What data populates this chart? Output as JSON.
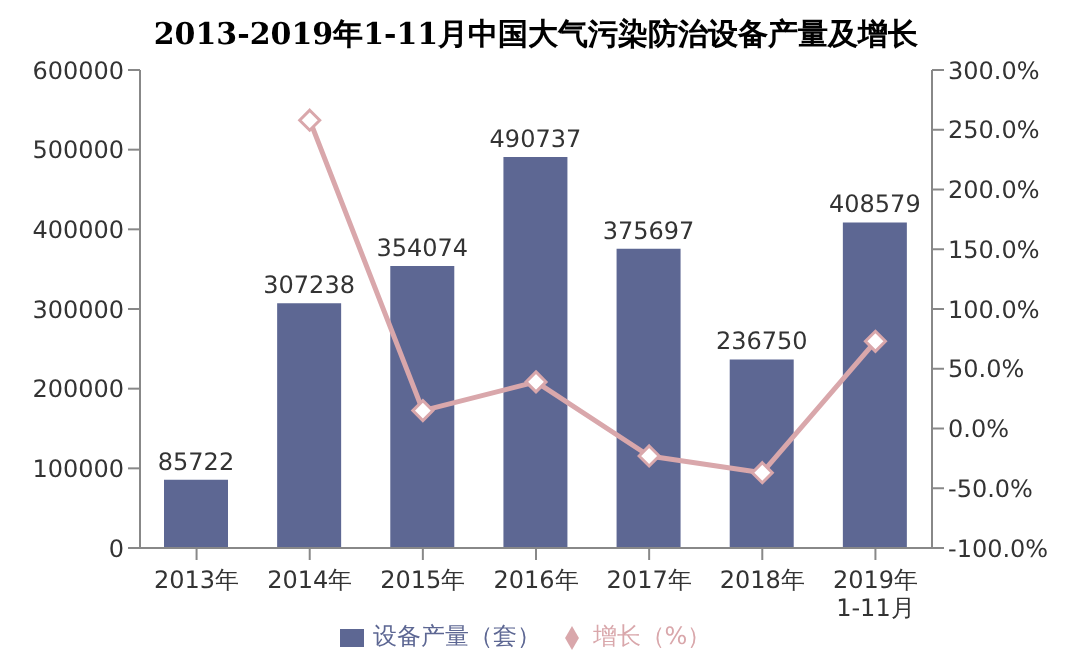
{
  "chart_data": {
    "type": "bar",
    "title": "2013-2019年1-11月中国大气污染防治设备产量及增长",
    "categories": [
      "2013年",
      "2014年",
      "2015年",
      "2016年",
      "2017年",
      "2018年",
      "2019年1-11月"
    ],
    "series": [
      {
        "name": "设备产量（套）",
        "color": "#5d6793",
        "values": [
          85722,
          307238,
          354074,
          490737,
          375697,
          236750,
          408579
        ],
        "value_labels": [
          "85722",
          "307238",
          "354074",
          "490737",
          "375697",
          "236750",
          "408579"
        ]
      },
      {
        "name": "增长（%）",
        "type": "line",
        "axis": "y2",
        "color": "#d9a7ab",
        "marker": "diamond",
        "values": [
          null,
          258,
          15,
          39,
          -23,
          -37,
          73
        ]
      }
    ],
    "ylim": [
      0,
      600000
    ],
    "yticks": [
      0,
      100000,
      200000,
      300000,
      400000,
      500000,
      600000
    ],
    "y2lim": [
      -100,
      300
    ],
    "y2ticks": [
      {
        "value": -100,
        "label": "-100.0%"
      },
      {
        "value": -50,
        "label": "-50.0%"
      },
      {
        "value": 0,
        "label": "0.0%"
      },
      {
        "value": 50,
        "label": "50.0%"
      },
      {
        "value": 100,
        "label": "100.0%"
      },
      {
        "value": 150,
        "label": "150.0%"
      },
      {
        "value": 200,
        "label": "200.0%"
      },
      {
        "value": 250,
        "label": "250.0%"
      },
      {
        "value": 300,
        "label": "300.0%"
      }
    ],
    "grid": false,
    "legend": "bottom"
  }
}
